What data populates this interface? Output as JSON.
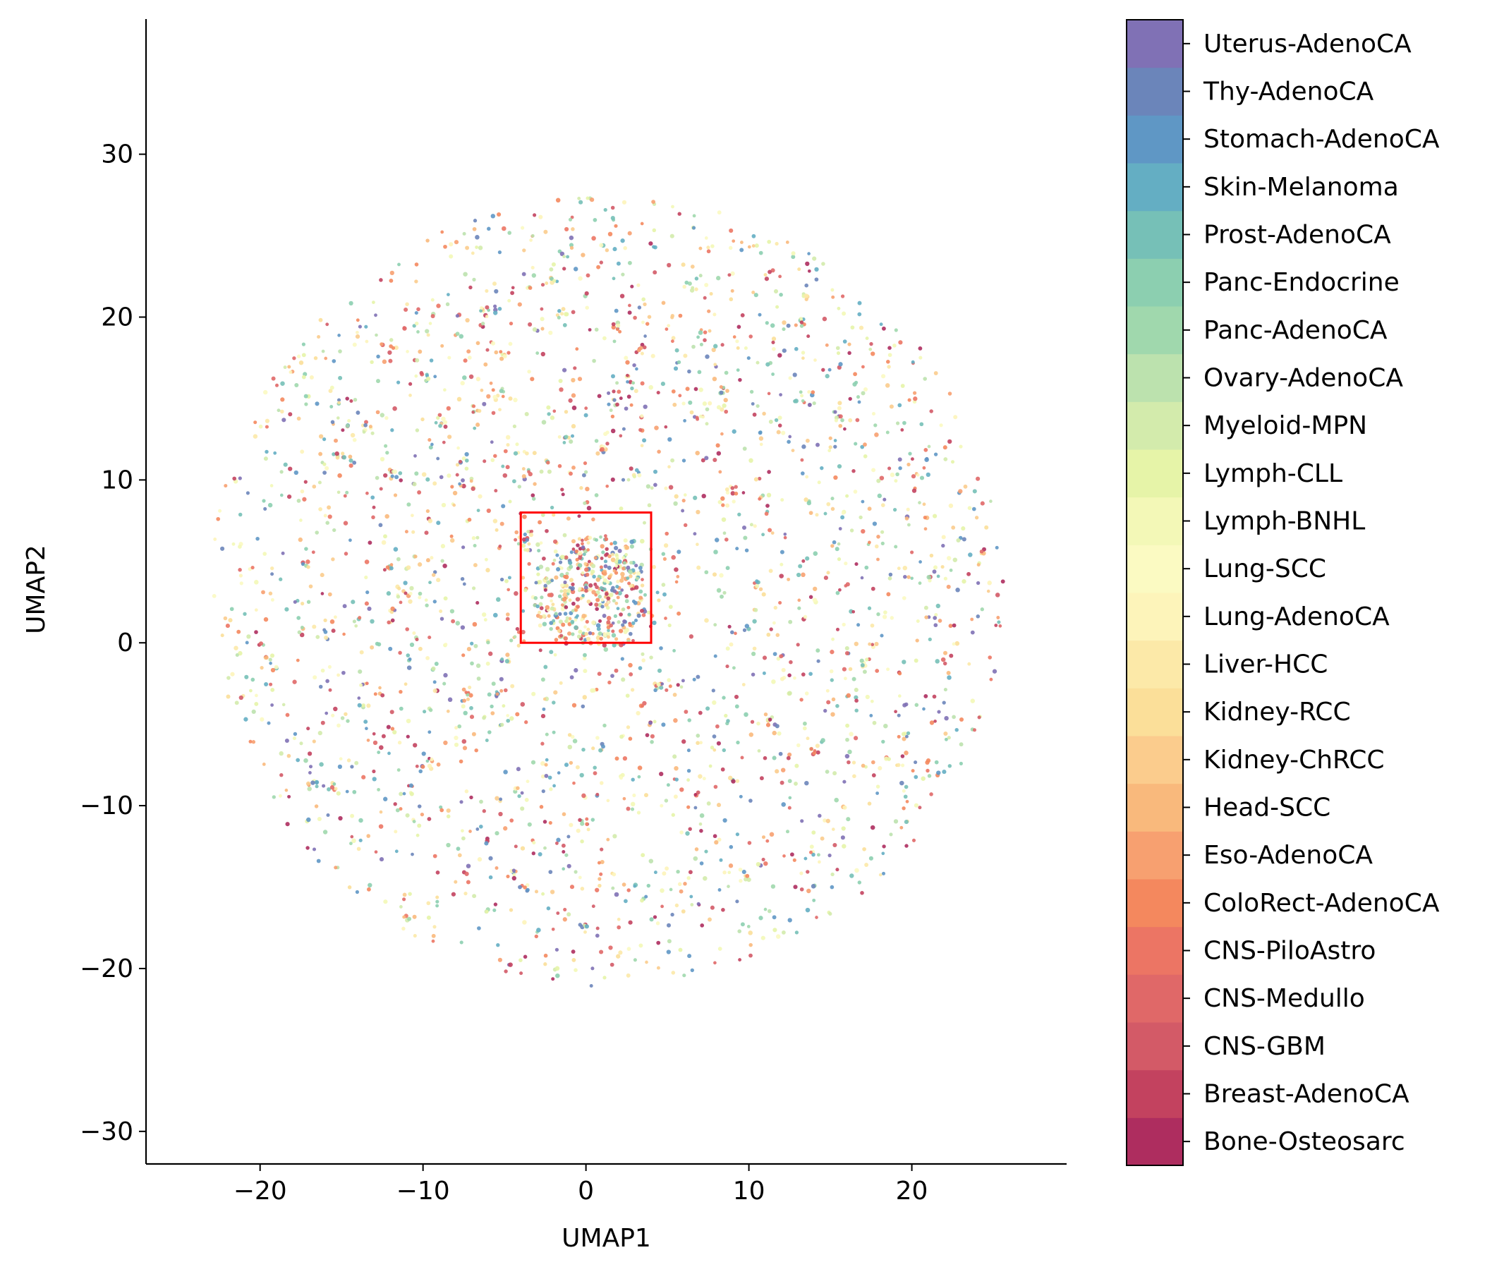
{
  "chart_data": {
    "type": "scatter",
    "title": "",
    "xlabel": "UMAP1",
    "ylabel": "UMAP2",
    "xlim": [
      -27,
      29.5
    ],
    "ylim": [
      -32,
      38.3
    ],
    "xticks": [
      -20,
      -10,
      0,
      10,
      20
    ],
    "yticks": [
      -30,
      -20,
      -10,
      0,
      10,
      20,
      30
    ],
    "xtick_labels": [
      "−20",
      "−10",
      "0",
      "10",
      "20"
    ],
    "ytick_labels": [
      "−30",
      "−20",
      "−10",
      "0",
      "10",
      "20",
      "30"
    ],
    "grid": false,
    "point_cloud": {
      "approx_points": 3000,
      "shape": "disk",
      "center": [
        1.3,
        3.2
      ],
      "radius": 24.3,
      "dense_core_center": [
        0.2,
        3.2
      ],
      "dense_core_radius": 3.5,
      "marker_size_desc": "small dots",
      "alpha": 0.9
    },
    "highlight_box": {
      "x0": -4,
      "x1": 4,
      "y0": 0,
      "y1": 8,
      "color": "#ff0000"
    },
    "colorbar": {
      "position": "right",
      "categories": [
        "Bone-Osteosarc",
        "Breast-AdenoCA",
        "CNS-GBM",
        "CNS-Medullo",
        "CNS-PiloAstro",
        "ColoRect-AdenoCA",
        "Eso-AdenoCA",
        "Head-SCC",
        "Kidney-ChRCC",
        "Kidney-RCC",
        "Liver-HCC",
        "Lung-AdenoCA",
        "Lung-SCC",
        "Lymph-BNHL",
        "Lymph-CLL",
        "Myeloid-MPN",
        "Ovary-AdenoCA",
        "Panc-AdenoCA",
        "Panc-Endocrine",
        "Prost-AdenoCA",
        "Skin-Melanoma",
        "Stomach-AdenoCA",
        "Thy-AdenoCA",
        "Uterus-AdenoCA"
      ],
      "colors": [
        "#ae2d5f",
        "#c3425f",
        "#d35a67",
        "#e06868",
        "#ec7564",
        "#f4885e",
        "#f7a070",
        "#f9b97c",
        "#fbcc8d",
        "#fbdf99",
        "#fce9a8",
        "#fdf4ba",
        "#fbfac2",
        "#f3f8b7",
        "#e6f4a8",
        "#d3ebac",
        "#bce2ae",
        "#a0d8ad",
        "#8ccfb0",
        "#76c0b7",
        "#64aec3",
        "#5f97c5",
        "#6b85ba",
        "#8071b5"
      ]
    },
    "colormap": "Spectral"
  }
}
